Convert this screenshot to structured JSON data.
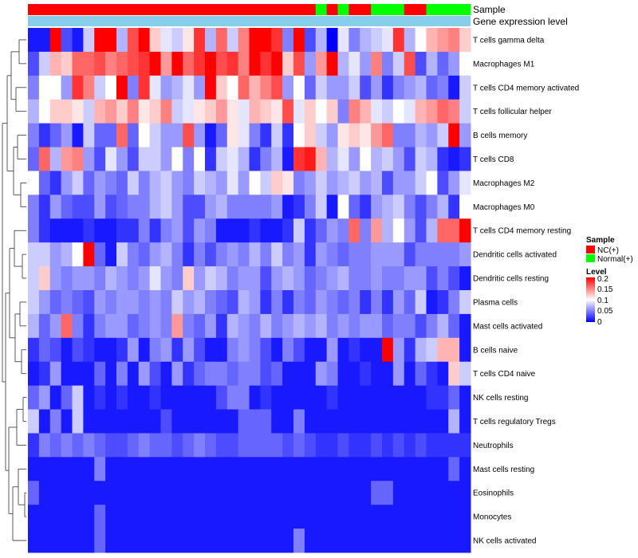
{
  "chart_data": {
    "type": "heatmap",
    "title": "",
    "annotation_labels": [
      "Sample",
      "Gene expression level"
    ],
    "rows": [
      "T cells gamma delta",
      "Macrophages M1",
      "T cells CD4 memory activated",
      "T cells follicular helper",
      "B cells memory",
      "T cells CD8",
      "Macrophages M2",
      "Macrophages M0",
      "T cells CD4 memory resting",
      "Dendritic cells activated",
      "Dendritic cells resting",
      "Plasma cells",
      "Mast cells activated",
      "B cells naive",
      "T cells CD4 naive",
      "NK cells resting",
      "T cells regulatory  Tregs",
      "Neutrophils",
      "Mast cells resting",
      "Eosinophils",
      "Monocytes",
      "NK cells activated"
    ],
    "sample_groups": [
      "NC",
      "NC",
      "NC",
      "NC",
      "NC",
      "NC",
      "NC",
      "NC",
      "NC",
      "NC",
      "NC",
      "NC",
      "NC",
      "NC",
      "NC",
      "NC",
      "NC",
      "NC",
      "NC",
      "NC",
      "NC",
      "NC",
      "NC",
      "NC",
      "NC",
      "NC",
      "Normal",
      "NC",
      "Normal",
      "NC",
      "NC",
      "Normal",
      "Normal",
      "Normal",
      "NC",
      "NC",
      "Normal",
      "Normal",
      "Normal",
      "Normal"
    ],
    "values": [
      [
        0.01,
        0.01,
        0.2,
        0.03,
        0.01,
        0.08,
        0.2,
        0.2,
        0.07,
        0.17,
        0.2,
        0.12,
        0.09,
        0.08,
        0.11,
        0.18,
        0.07,
        0.16,
        0.08,
        0.15,
        0.2,
        0.2,
        0.18,
        0.05,
        0.2,
        0.03,
        0.07,
        0.0,
        0.09,
        0.05,
        0.07,
        0.08,
        0.09,
        0.18,
        0.07,
        0.1,
        0.13,
        0.14,
        0.15,
        0.12
      ],
      [
        0.03,
        0.08,
        0.13,
        0.12,
        0.16,
        0.16,
        0.17,
        0.15,
        0.16,
        0.17,
        0.18,
        0.2,
        0.14,
        0.2,
        0.16,
        0.18,
        0.2,
        0.17,
        0.18,
        0.15,
        0.2,
        0.18,
        0.2,
        0.12,
        0.17,
        0.06,
        0.14,
        0.2,
        0.07,
        0.09,
        0.06,
        0.15,
        0.05,
        0.08,
        0.17,
        0.03,
        0.07,
        0.04,
        0.06,
        0.1
      ],
      [
        0.05,
        0.1,
        0.1,
        0.06,
        0.18,
        0.15,
        0.08,
        0.1,
        0.2,
        0.05,
        0.18,
        0.09,
        0.06,
        0.07,
        0.09,
        0.06,
        0.2,
        0.12,
        0.1,
        0.16,
        0.13,
        0.15,
        0.17,
        0.06,
        0.1,
        0.04,
        0.08,
        0.06,
        0.06,
        0.08,
        0.03,
        0.06,
        0.02,
        0.05,
        0.06,
        0.07,
        0.04,
        0.05,
        0.01,
        0.08
      ],
      [
        0.07,
        0.1,
        0.12,
        0.12,
        0.11,
        0.08,
        0.13,
        0.14,
        0.12,
        0.15,
        0.11,
        0.12,
        0.15,
        0.08,
        0.09,
        0.11,
        0.12,
        0.14,
        0.11,
        0.09,
        0.13,
        0.12,
        0.11,
        0.17,
        0.09,
        0.12,
        0.1,
        0.12,
        0.05,
        0.15,
        0.13,
        0.09,
        0.08,
        0.1,
        0.09,
        0.13,
        0.14,
        0.16,
        0.15,
        0.08
      ],
      [
        0.05,
        0.02,
        0.04,
        0.06,
        0.01,
        0.08,
        0.04,
        0.04,
        0.16,
        0.04,
        0.1,
        0.08,
        0.06,
        0.06,
        0.17,
        0.06,
        0.01,
        0.04,
        0.11,
        0.09,
        0.05,
        0.02,
        0.08,
        0.02,
        0.1,
        0.12,
        0.08,
        0.06,
        0.11,
        0.12,
        0.11,
        0.14,
        0.16,
        0.05,
        0.05,
        0.07,
        0.06,
        0.08,
        0.2,
        0.06
      ],
      [
        0.04,
        0.16,
        0.07,
        0.14,
        0.15,
        0.06,
        0.03,
        0.09,
        0.06,
        0.03,
        0.08,
        0.08,
        0.06,
        0.1,
        0.05,
        0.1,
        0.02,
        0.08,
        0.09,
        0.07,
        0.02,
        0.05,
        0.07,
        0.01,
        0.18,
        0.19,
        0.13,
        0.07,
        0.09,
        0.06,
        0.1,
        0.07,
        0.08,
        0.06,
        0.03,
        0.08,
        0.07,
        0.02,
        0.01,
        0.02
      ],
      [
        0.1,
        0.04,
        0.02,
        0.06,
        0.08,
        0.04,
        0.06,
        0.05,
        0.04,
        0.08,
        0.05,
        0.07,
        0.08,
        0.06,
        0.05,
        0.08,
        0.07,
        0.06,
        0.09,
        0.06,
        0.1,
        0.08,
        0.12,
        0.11,
        0.05,
        0.06,
        0.08,
        0.06,
        0.07,
        0.08,
        0.06,
        0.07,
        0.03,
        0.06,
        0.06,
        0.08,
        0.1,
        0.03,
        0.06,
        0.09
      ],
      [
        0.05,
        0.02,
        0.06,
        0.04,
        0.03,
        0.03,
        0.06,
        0.03,
        0.04,
        0.05,
        0.05,
        0.07,
        0.08,
        0.06,
        0.03,
        0.03,
        0.06,
        0.07,
        0.05,
        0.05,
        0.05,
        0.05,
        0.06,
        0.01,
        0.02,
        0.05,
        0.08,
        0.01,
        0.1,
        0.04,
        0.02,
        0.06,
        0.07,
        0.08,
        0.05,
        0.03,
        0.05,
        0.07,
        0.02,
        0.1
      ],
      [
        0.05,
        0.02,
        0.01,
        0.01,
        0.01,
        0.02,
        0.01,
        0.01,
        0.02,
        0.02,
        0.05,
        0.02,
        0.05,
        0.06,
        0.03,
        0.06,
        0.05,
        0.01,
        0.01,
        0.01,
        0.02,
        0.01,
        0.01,
        0.02,
        0.08,
        0.02,
        0.04,
        0.06,
        0.05,
        0.16,
        0.05,
        0.14,
        0.07,
        0.1,
        0.06,
        0.03,
        0.07,
        0.16,
        0.16,
        0.2
      ],
      [
        0.08,
        0.08,
        0.06,
        0.07,
        0.1,
        0.2,
        0.04,
        0.01,
        0.08,
        0.05,
        0.04,
        0.06,
        0.07,
        0.05,
        0.02,
        0.05,
        0.03,
        0.05,
        0.06,
        0.05,
        0.07,
        0.05,
        0.08,
        0.05,
        0.06,
        0.02,
        0.06,
        0.05,
        0.04,
        0.05,
        0.05,
        0.06,
        0.06,
        0.06,
        0.03,
        0.05,
        0.05,
        0.05,
        0.05,
        0.06
      ],
      [
        0.08,
        0.12,
        0.06,
        0.05,
        0.06,
        0.06,
        0.05,
        0.07,
        0.06,
        0.05,
        0.06,
        0.09,
        0.06,
        0.05,
        0.12,
        0.06,
        0.08,
        0.07,
        0.05,
        0.06,
        0.06,
        0.03,
        0.06,
        0.07,
        0.06,
        0.04,
        0.05,
        0.06,
        0.07,
        0.05,
        0.05,
        0.06,
        0.05,
        0.05,
        0.06,
        0.06,
        0.03,
        0.05,
        0.03,
        0.01
      ],
      [
        0.08,
        0.06,
        0.04,
        0.05,
        0.04,
        0.03,
        0.06,
        0.05,
        0.06,
        0.06,
        0.05,
        0.06,
        0.05,
        0.08,
        0.06,
        0.07,
        0.05,
        0.04,
        0.03,
        0.07,
        0.06,
        0.02,
        0.05,
        0.02,
        0.05,
        0.04,
        0.06,
        0.05,
        0.04,
        0.05,
        0.02,
        0.05,
        0.02,
        0.06,
        0.04,
        0.08,
        0.01,
        0.02,
        0.05,
        0.08
      ],
      [
        0.07,
        0.04,
        0.06,
        0.16,
        0.05,
        0.02,
        0.05,
        0.06,
        0.06,
        0.04,
        0.05,
        0.06,
        0.05,
        0.14,
        0.05,
        0.04,
        0.06,
        0.02,
        0.07,
        0.06,
        0.05,
        0.07,
        0.05,
        0.06,
        0.07,
        0.06,
        0.07,
        0.05,
        0.06,
        0.05,
        0.06,
        0.06,
        0.04,
        0.05,
        0.05,
        0.03,
        0.05,
        0.07,
        0.04,
        0.01
      ],
      [
        0.02,
        0.04,
        0.03,
        0.01,
        0.03,
        0.02,
        0.01,
        0.01,
        0.02,
        0.06,
        0.01,
        0.05,
        0.06,
        0.02,
        0.06,
        0.03,
        0.01,
        0.01,
        0.05,
        0.06,
        0.05,
        0.03,
        0.01,
        0.05,
        0.03,
        0.01,
        0.01,
        0.06,
        0.01,
        0.02,
        0.01,
        0.01,
        0.2,
        0.06,
        0.02,
        0.07,
        0.08,
        0.13,
        0.13,
        0.01
      ],
      [
        0.01,
        0.02,
        0.06,
        0.01,
        0.01,
        0.01,
        0.04,
        0.01,
        0.05,
        0.01,
        0.06,
        0.03,
        0.01,
        0.06,
        0.02,
        0.04,
        0.05,
        0.05,
        0.04,
        0.05,
        0.05,
        0.03,
        0.04,
        0.01,
        0.01,
        0.01,
        0.06,
        0.05,
        0.01,
        0.01,
        0.02,
        0.01,
        0.01,
        0.06,
        0.01,
        0.04,
        0.02,
        0.01,
        0.12,
        0.08
      ],
      [
        0.04,
        0.06,
        0.01,
        0.04,
        0.08,
        0.01,
        0.02,
        0.01,
        0.02,
        0.01,
        0.01,
        0.02,
        0.01,
        0.01,
        0.01,
        0.01,
        0.01,
        0.03,
        0.05,
        0.05,
        0.01,
        0.02,
        0.01,
        0.01,
        0.01,
        0.01,
        0.01,
        0.02,
        0.01,
        0.01,
        0.01,
        0.01,
        0.01,
        0.01,
        0.01,
        0.01,
        0.02,
        0.02,
        0.04,
        0.01
      ],
      [
        0.08,
        0.01,
        0.05,
        0.01,
        0.08,
        0.01,
        0.01,
        0.01,
        0.01,
        0.01,
        0.01,
        0.01,
        0.03,
        0.01,
        0.01,
        0.01,
        0.01,
        0.01,
        0.01,
        0.04,
        0.04,
        0.04,
        0.01,
        0.01,
        0.05,
        0.01,
        0.01,
        0.01,
        0.01,
        0.01,
        0.01,
        0.01,
        0.01,
        0.01,
        0.01,
        0.01,
        0.01,
        0.01,
        0.07,
        0.01
      ],
      [
        0.02,
        0.05,
        0.04,
        0.05,
        0.04,
        0.05,
        0.04,
        0.03,
        0.03,
        0.04,
        0.05,
        0.04,
        0.04,
        0.03,
        0.04,
        0.05,
        0.04,
        0.03,
        0.03,
        0.04,
        0.04,
        0.04,
        0.04,
        0.03,
        0.04,
        0.03,
        0.02,
        0.02,
        0.03,
        0.02,
        0.02,
        0.03,
        0.02,
        0.03,
        0.02,
        0.03,
        0.02,
        0.02,
        0.02,
        0.02
      ],
      [
        0.01,
        0.01,
        0.01,
        0.01,
        0.01,
        0.01,
        0.05,
        0.01,
        0.01,
        0.01,
        0.01,
        0.01,
        0.01,
        0.01,
        0.01,
        0.01,
        0.01,
        0.01,
        0.01,
        0.01,
        0.01,
        0.01,
        0.01,
        0.01,
        0.01,
        0.01,
        0.01,
        0.01,
        0.01,
        0.01,
        0.01,
        0.01,
        0.01,
        0.01,
        0.01,
        0.01,
        0.01,
        0.01,
        0.04,
        0.01
      ],
      [
        0.04,
        0.01,
        0.01,
        0.01,
        0.01,
        0.01,
        0.01,
        0.01,
        0.01,
        0.01,
        0.01,
        0.01,
        0.01,
        0.01,
        0.01,
        0.01,
        0.01,
        0.01,
        0.01,
        0.01,
        0.01,
        0.01,
        0.01,
        0.01,
        0.01,
        0.01,
        0.01,
        0.01,
        0.01,
        0.01,
        0.01,
        0.04,
        0.04,
        0.01,
        0.01,
        0.01,
        0.01,
        0.01,
        0.01,
        0.01
      ],
      [
        0.01,
        0.01,
        0.01,
        0.01,
        0.01,
        0.01,
        0.04,
        0.01,
        0.01,
        0.01,
        0.01,
        0.01,
        0.01,
        0.01,
        0.01,
        0.01,
        0.01,
        0.01,
        0.01,
        0.01,
        0.01,
        0.01,
        0.01,
        0.01,
        0.01,
        0.01,
        0.01,
        0.01,
        0.01,
        0.01,
        0.01,
        0.01,
        0.01,
        0.01,
        0.01,
        0.01,
        0.01,
        0.01,
        0.01,
        0.01
      ],
      [
        0.01,
        0.01,
        0.01,
        0.01,
        0.01,
        0.01,
        0.04,
        0.01,
        0.01,
        0.01,
        0.01,
        0.01,
        0.01,
        0.01,
        0.01,
        0.01,
        0.01,
        0.01,
        0.01,
        0.01,
        0.01,
        0.01,
        0.01,
        0.01,
        0.05,
        0.01,
        0.01,
        0.01,
        0.01,
        0.01,
        0.01,
        0.01,
        0.01,
        0.01,
        0.01,
        0.01,
        0.01,
        0.01,
        0.01,
        0.01
      ]
    ],
    "legend": {
      "sample": {
        "title": "Sample",
        "items": [
          {
            "label": "NC(+)",
            "color": "#ff0000"
          },
          {
            "label": "Normal(+)",
            "color": "#00ff00"
          }
        ]
      },
      "level": {
        "title": "Level",
        "ticks": [
          "0.2",
          "0.15",
          "0.1",
          "0.05",
          "0"
        ],
        "range": [
          0,
          0.2
        ],
        "colors": [
          "#0000ff",
          "#ffffff",
          "#ff0000"
        ]
      }
    },
    "gene_expression_color": "#87ceeb",
    "colors": {
      "low": "#0000ff",
      "mid": "#ffffff",
      "high": "#ff0000"
    }
  }
}
